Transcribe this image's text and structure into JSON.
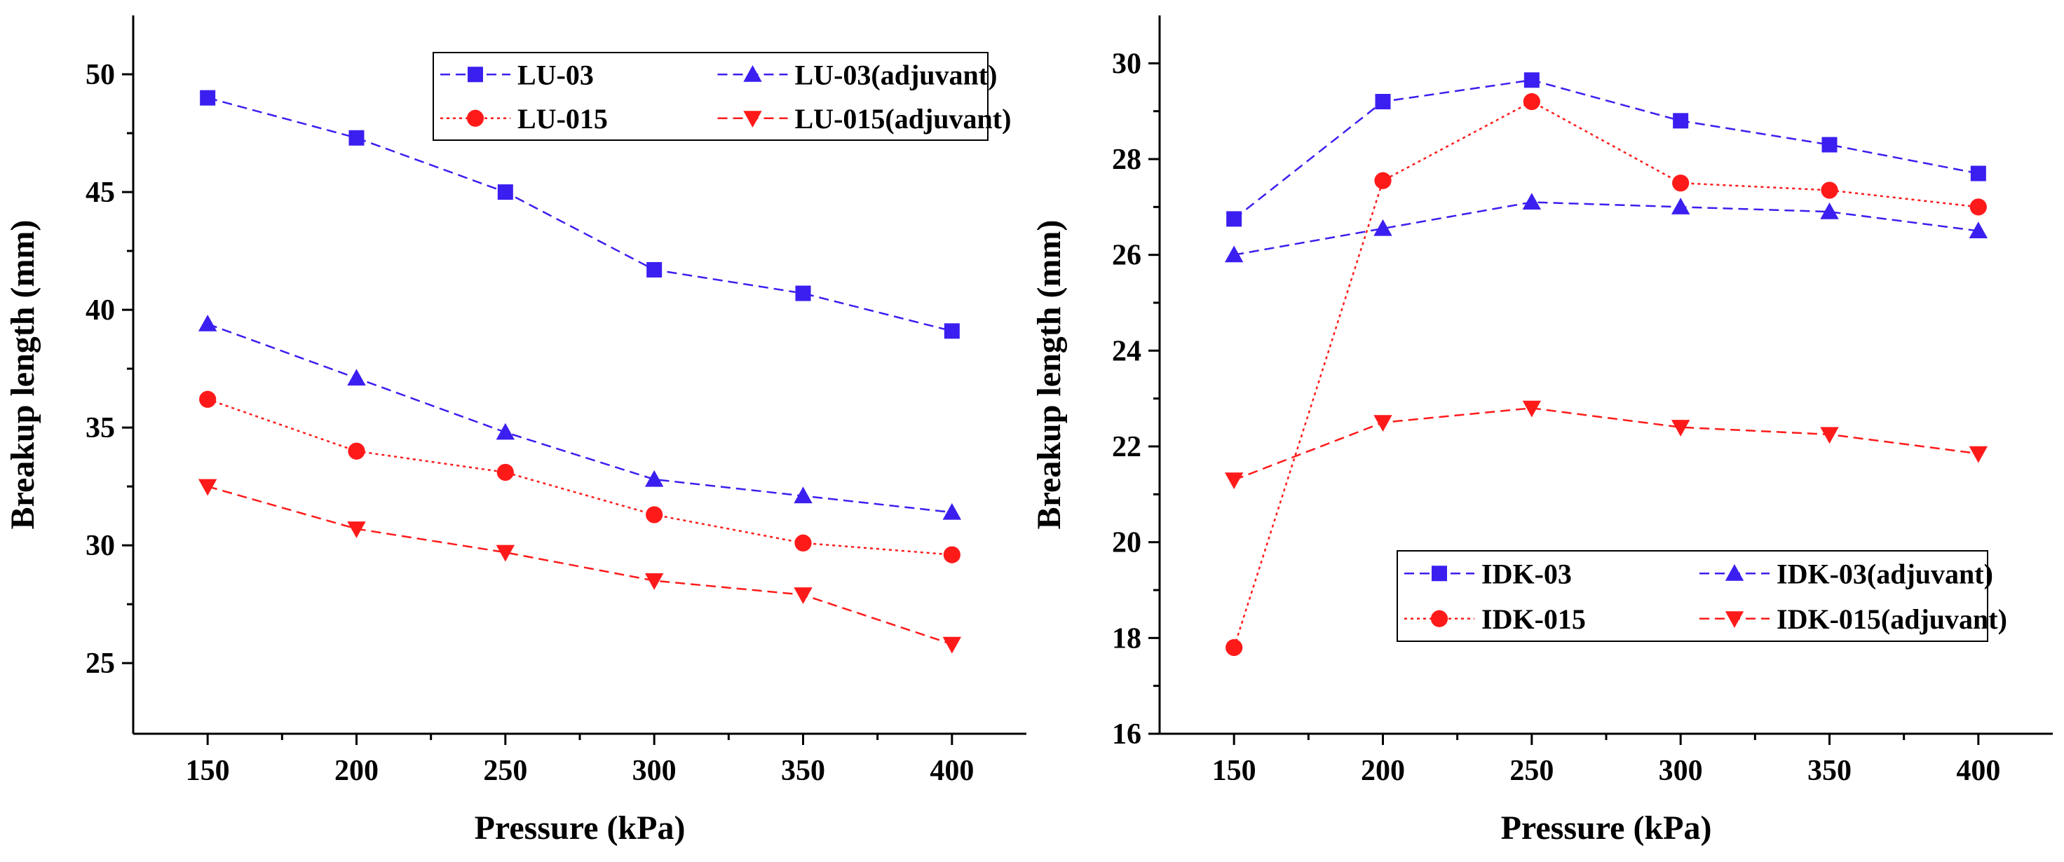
{
  "chart_data": [
    {
      "type": "line",
      "title": "",
      "xlabel": "Pressure (kPa)",
      "ylabel": "Breakup length (mm)",
      "xlim": [
        125,
        425
      ],
      "ylim": [
        22,
        52.5
      ],
      "xticks": [
        150,
        200,
        250,
        300,
        350,
        400
      ],
      "yticks": [
        25,
        30,
        35,
        40,
        45,
        50
      ],
      "grid": false,
      "legend_position": "top-right",
      "x": [
        150,
        200,
        250,
        300,
        350,
        400
      ],
      "series": [
        {
          "name": "LU-03",
          "marker": "square",
          "color": "#3b1ff0",
          "line": "dashed",
          "values": [
            49.0,
            47.3,
            45.0,
            41.7,
            40.7,
            39.1
          ]
        },
        {
          "name": "LU-03(adjuvant)",
          "marker": "triangle-up",
          "color": "#3b1ff0",
          "line": "dashed",
          "values": [
            39.4,
            37.1,
            34.8,
            32.8,
            32.1,
            31.4
          ]
        },
        {
          "name": "LU-015",
          "marker": "circle",
          "color": "#ff1a1a",
          "line": "dotted",
          "values": [
            36.2,
            34.0,
            33.1,
            31.3,
            30.1,
            29.6
          ]
        },
        {
          "name": "LU-015(adjuvant)",
          "marker": "triangle-down",
          "color": "#ff1a1a",
          "line": "dashed",
          "values": [
            32.5,
            30.7,
            29.7,
            28.5,
            27.9,
            25.8
          ]
        }
      ]
    },
    {
      "type": "line",
      "title": "",
      "xlabel": "Pressure (kPa)",
      "ylabel": "Breakup length (mm)",
      "xlim": [
        125,
        425
      ],
      "ylim": [
        16,
        31
      ],
      "xticks": [
        150,
        200,
        250,
        300,
        350,
        400
      ],
      "yticks": [
        16,
        18,
        20,
        22,
        24,
        26,
        28,
        30
      ],
      "grid": false,
      "legend_position": "bottom-right",
      "x": [
        150,
        200,
        250,
        300,
        350,
        400
      ],
      "series": [
        {
          "name": "IDK-03",
          "marker": "square",
          "color": "#3b1ff0",
          "line": "dashed",
          "values": [
            26.75,
            29.2,
            29.65,
            28.8,
            28.3,
            27.7
          ]
        },
        {
          "name": "IDK-03(adjuvant)",
          "marker": "triangle-up",
          "color": "#3b1ff0",
          "line": "dashed",
          "values": [
            26.0,
            26.55,
            27.1,
            27.0,
            26.9,
            26.5
          ]
        },
        {
          "name": "IDK-015",
          "marker": "circle",
          "color": "#ff1a1a",
          "line": "dotted",
          "values": [
            17.8,
            27.55,
            29.2,
            27.5,
            27.35,
            27.0
          ]
        },
        {
          "name": "IDK-015(adjuvant)",
          "marker": "triangle-down",
          "color": "#ff1a1a",
          "line": "dashed",
          "values": [
            21.3,
            22.5,
            22.8,
            22.4,
            22.25,
            21.85
          ]
        }
      ]
    }
  ]
}
